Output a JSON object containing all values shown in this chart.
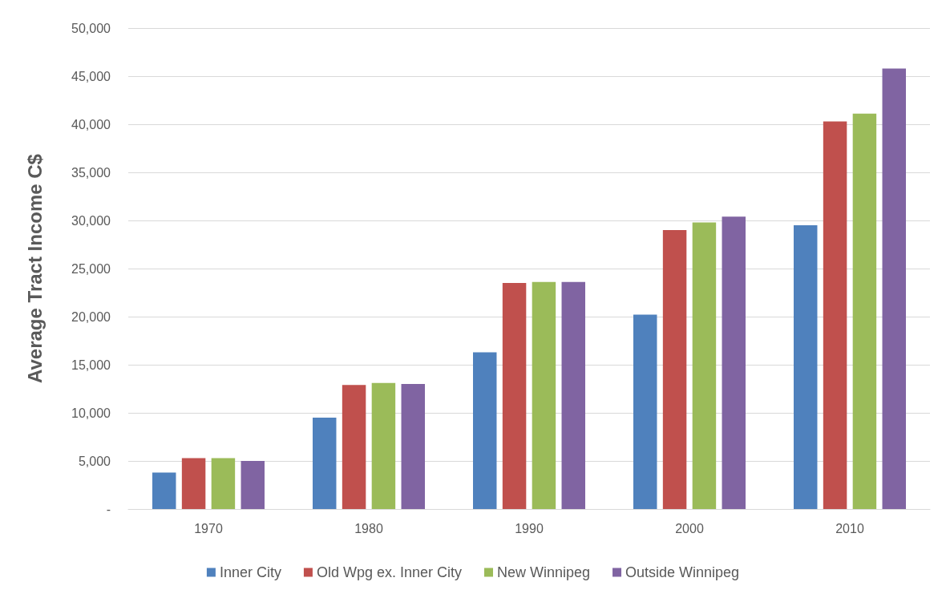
{
  "chart_data": {
    "type": "bar",
    "ylabel": "Average Tract Income C$",
    "categories": [
      "1970",
      "1980",
      "1990",
      "2000",
      "2010"
    ],
    "series": [
      {
        "name": "Inner City",
        "color": "#4f81bd",
        "values": [
          3800,
          9500,
          16300,
          20200,
          29500
        ]
      },
      {
        "name": "Old Wpg ex. Inner City",
        "color": "#c0504d",
        "values": [
          5300,
          12900,
          23500,
          29000,
          40300
        ]
      },
      {
        "name": "New Winnipeg",
        "color": "#9bbb59",
        "values": [
          5300,
          13100,
          23600,
          29800,
          41100
        ]
      },
      {
        "name": "Outside Winnipeg",
        "color": "#8064a2",
        "values": [
          5000,
          13000,
          23600,
          30400,
          45800
        ]
      }
    ],
    "ylim": [
      0,
      50000
    ],
    "yticks": [
      {
        "value": 0,
        "label": "-"
      },
      {
        "value": 5000,
        "label": "5,000"
      },
      {
        "value": 10000,
        "label": "10,000"
      },
      {
        "value": 15000,
        "label": "15,000"
      },
      {
        "value": 20000,
        "label": "20,000"
      },
      {
        "value": 25000,
        "label": "25,000"
      },
      {
        "value": 30000,
        "label": "30,000"
      },
      {
        "value": 35000,
        "label": "35,000"
      },
      {
        "value": 40000,
        "label": "40,000"
      },
      {
        "value": 45000,
        "label": "45,000"
      },
      {
        "value": 50000,
        "label": "50,000"
      }
    ],
    "grid": "y",
    "legend": "bottom"
  }
}
